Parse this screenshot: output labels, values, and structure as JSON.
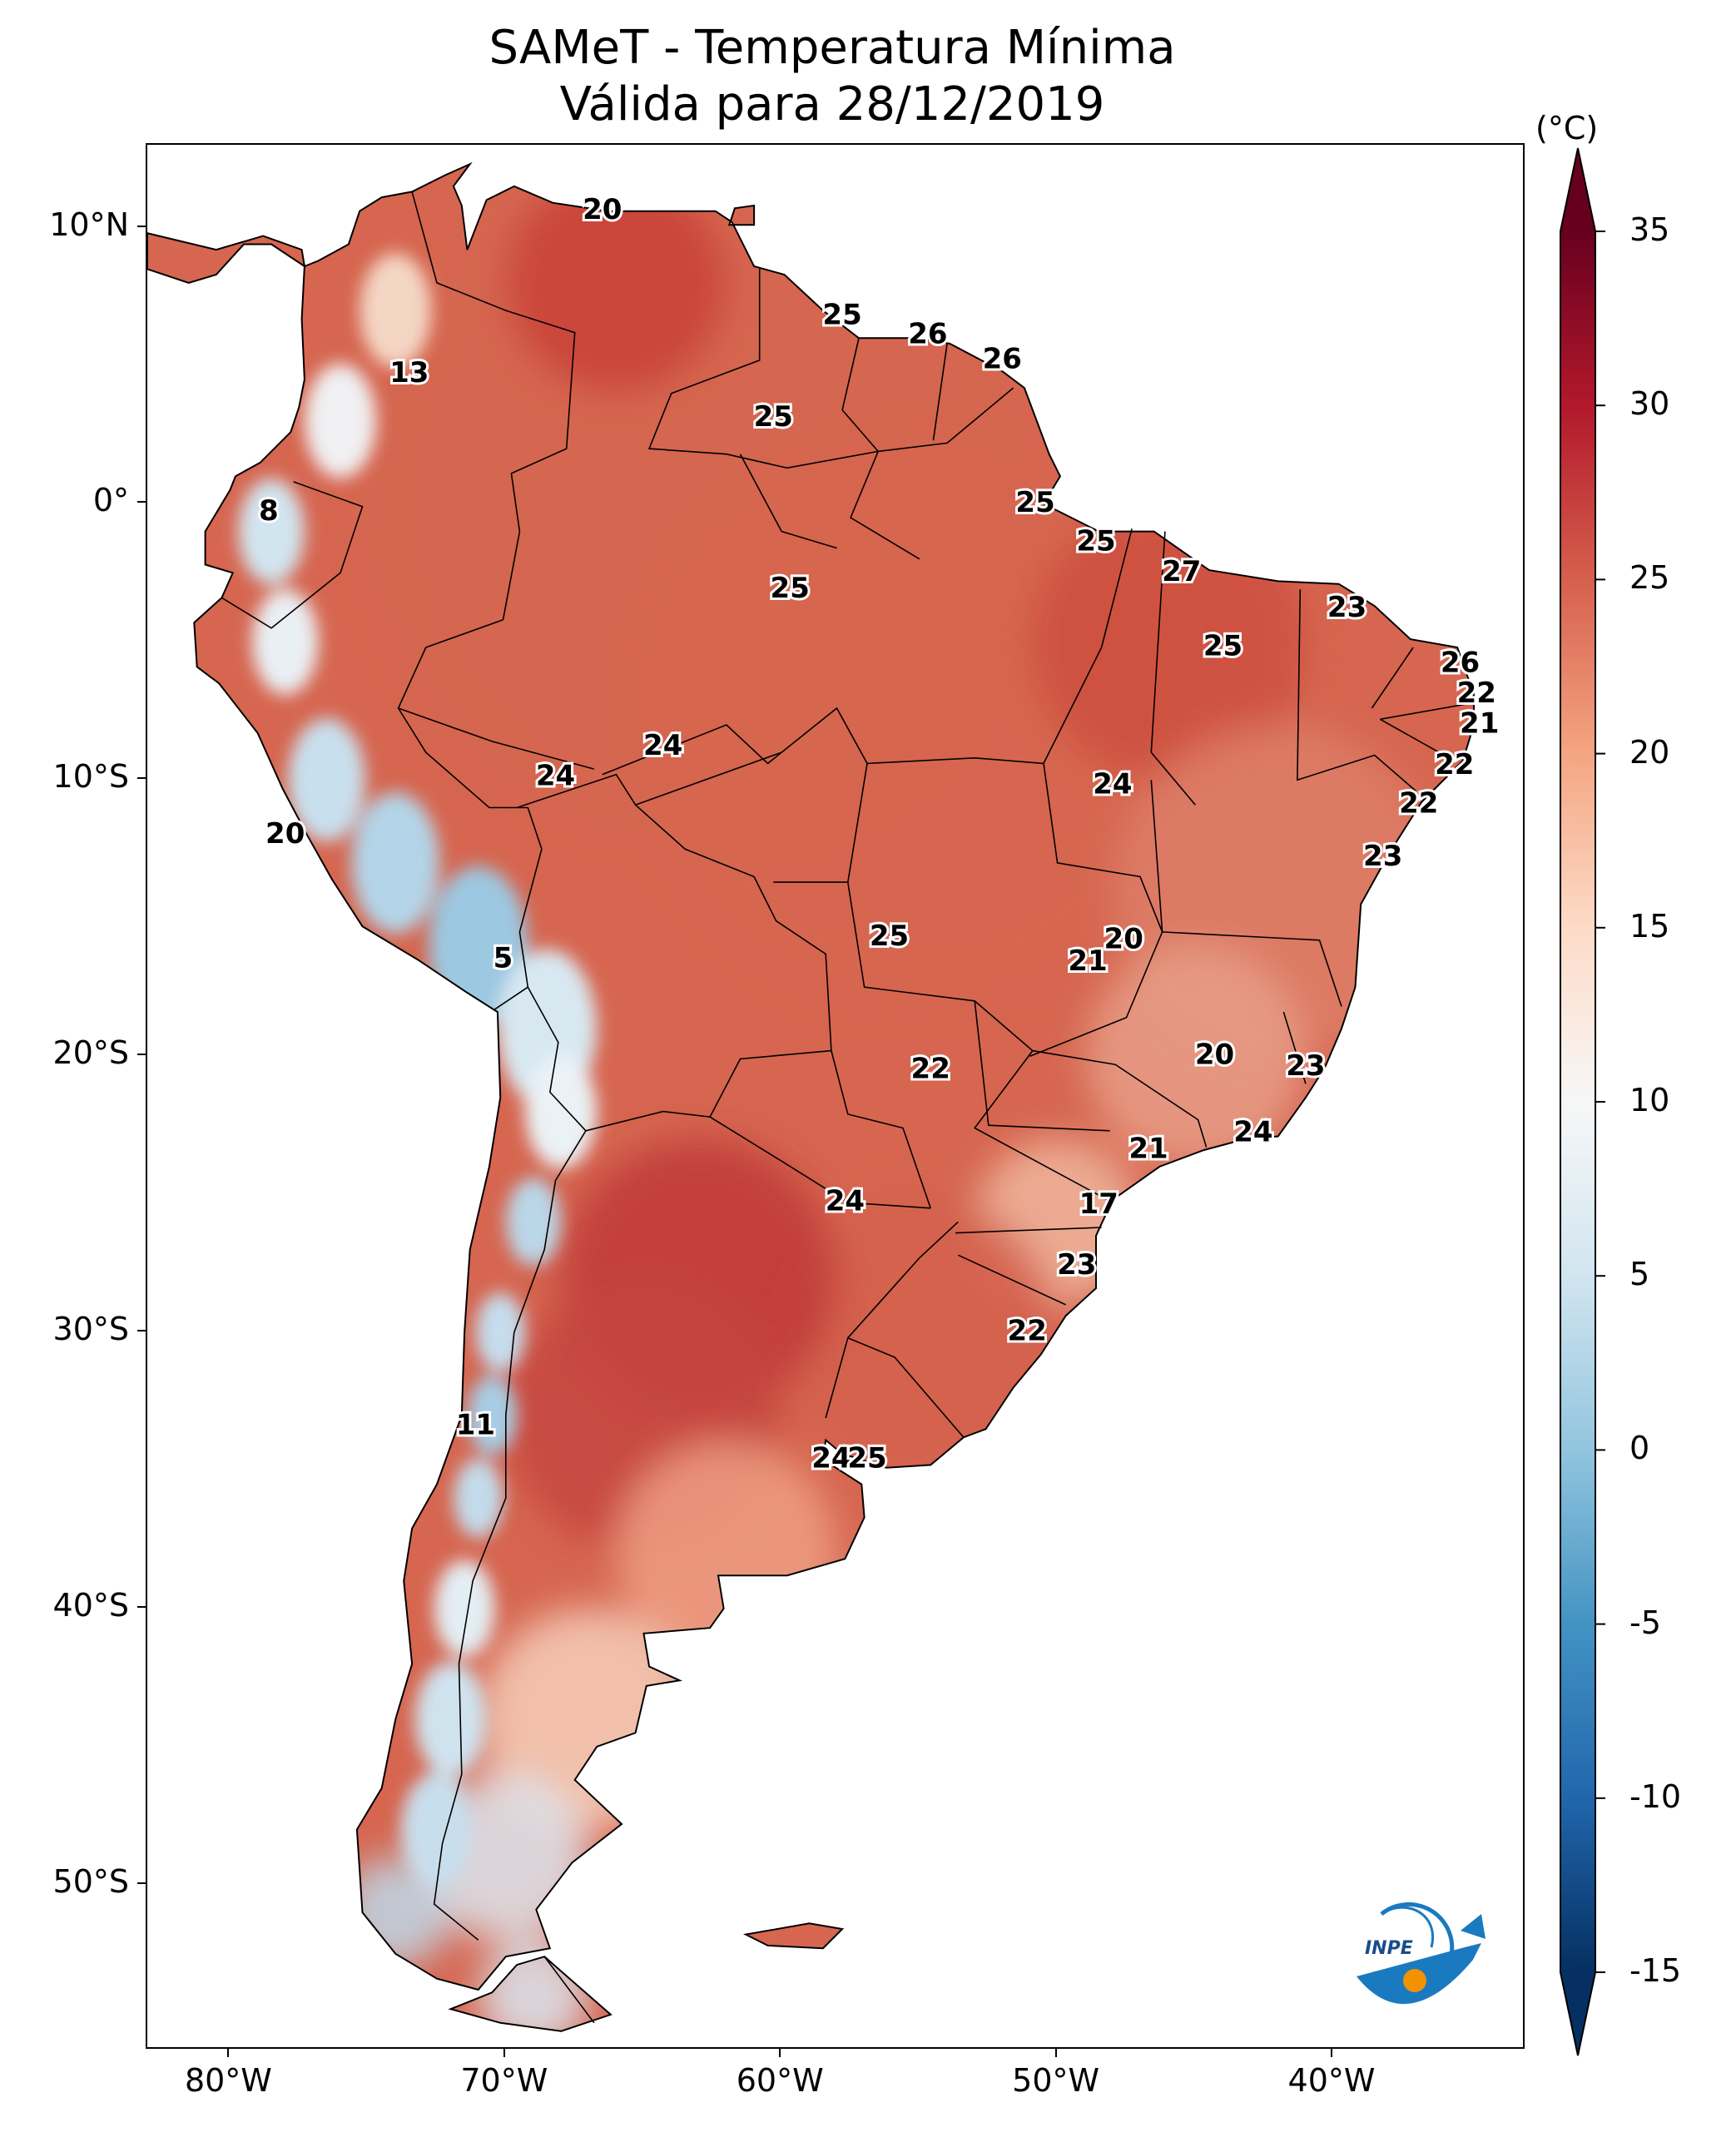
{
  "title": {
    "line1": "SAMeT - Temperatura Mínima",
    "line2": "Válida para 28/12/2019"
  },
  "map": {
    "extent": {
      "lon_min": -83,
      "lon_max": -33,
      "lat_min": -56,
      "lat_max": 13
    },
    "latitude_labels": [
      {
        "lat": 10,
        "text": "10°N"
      },
      {
        "lat": 0,
        "text": "0°"
      },
      {
        "lat": -10,
        "text": "10°S"
      },
      {
        "lat": -20,
        "text": "20°S"
      },
      {
        "lat": -30,
        "text": "30°S"
      },
      {
        "lat": -40,
        "text": "40°S"
      },
      {
        "lat": -50,
        "text": "50°S"
      }
    ],
    "longitude_labels": [
      {
        "lon": -80,
        "text": "80°W"
      },
      {
        "lon": -70,
        "text": "70°W"
      },
      {
        "lon": -60,
        "text": "60°W"
      },
      {
        "lon": -50,
        "text": "50°W"
      },
      {
        "lon": -40,
        "text": "40°W"
      }
    ],
    "value_labels": [
      {
        "lon": -66.5,
        "lat": 10.6,
        "text": "20"
      },
      {
        "lon": -57.8,
        "lat": 6.8,
        "text": "25"
      },
      {
        "lon": -54.7,
        "lat": 6.1,
        "text": "26"
      },
      {
        "lon": -52.0,
        "lat": 5.2,
        "text": "26"
      },
      {
        "lon": -73.5,
        "lat": 4.7,
        "text": "13"
      },
      {
        "lon": -60.3,
        "lat": 3.1,
        "text": "25"
      },
      {
        "lon": -78.6,
        "lat": -0.3,
        "text": "8"
      },
      {
        "lon": -50.8,
        "lat": 0.0,
        "text": "25"
      },
      {
        "lon": -48.6,
        "lat": -1.4,
        "text": "25"
      },
      {
        "lon": -59.7,
        "lat": -3.1,
        "text": "25"
      },
      {
        "lon": -45.5,
        "lat": -2.5,
        "text": "27"
      },
      {
        "lon": -39.5,
        "lat": -3.8,
        "text": "23"
      },
      {
        "lon": -44.0,
        "lat": -5.2,
        "text": "25"
      },
      {
        "lon": -35.4,
        "lat": -5.8,
        "text": "26"
      },
      {
        "lon": -34.8,
        "lat": -6.9,
        "text": "22"
      },
      {
        "lon": -34.7,
        "lat": -8.0,
        "text": "21"
      },
      {
        "lon": -35.6,
        "lat": -9.5,
        "text": "22"
      },
      {
        "lon": -36.9,
        "lat": -10.9,
        "text": "22"
      },
      {
        "lon": -64.3,
        "lat": -8.8,
        "text": "24"
      },
      {
        "lon": -68.2,
        "lat": -9.9,
        "text": "24"
      },
      {
        "lon": -48.0,
        "lat": -10.2,
        "text": "24"
      },
      {
        "lon": -78.0,
        "lat": -12.0,
        "text": "20"
      },
      {
        "lon": -38.2,
        "lat": -12.8,
        "text": "23"
      },
      {
        "lon": -56.1,
        "lat": -15.7,
        "text": "25"
      },
      {
        "lon": -70.1,
        "lat": -16.5,
        "text": "5"
      },
      {
        "lon": -47.6,
        "lat": -15.8,
        "text": "20"
      },
      {
        "lon": -48.9,
        "lat": -16.6,
        "text": "21"
      },
      {
        "lon": -54.6,
        "lat": -20.5,
        "text": "22"
      },
      {
        "lon": -44.3,
        "lat": -20.0,
        "text": "20"
      },
      {
        "lon": -41.0,
        "lat": -20.4,
        "text": "23"
      },
      {
        "lon": -42.9,
        "lat": -22.8,
        "text": "24"
      },
      {
        "lon": -46.7,
        "lat": -23.4,
        "text": "21"
      },
      {
        "lon": -57.7,
        "lat": -25.3,
        "text": "24"
      },
      {
        "lon": -48.5,
        "lat": -25.4,
        "text": "17"
      },
      {
        "lon": -49.3,
        "lat": -27.6,
        "text": "23"
      },
      {
        "lon": -51.1,
        "lat": -30.0,
        "text": "22"
      },
      {
        "lon": -71.1,
        "lat": -33.4,
        "text": "11"
      },
      {
        "lon": -58.2,
        "lat": -34.6,
        "text": "24"
      },
      {
        "lon": -56.9,
        "lat": -34.6,
        "text": "25"
      }
    ]
  },
  "colorbar": {
    "unit": "(°C)",
    "min": -17.5,
    "max": 37.5,
    "colors": [
      "#053061",
      "#2166ac",
      "#4393c3",
      "#92c5de",
      "#d1e5f0",
      "#f7f7f7",
      "#fddbc7",
      "#f4a582",
      "#d6604d",
      "#b2182b",
      "#67001f"
    ],
    "ticks": [
      {
        "value": 35,
        "text": "35"
      },
      {
        "value": 30,
        "text": "30"
      },
      {
        "value": 25,
        "text": "25"
      },
      {
        "value": 20,
        "text": "20"
      },
      {
        "value": 15,
        "text": "15"
      },
      {
        "value": 10,
        "text": "10"
      },
      {
        "value": 5,
        "text": "5"
      },
      {
        "value": 0,
        "text": "0"
      },
      {
        "value": -5,
        "text": "-5"
      },
      {
        "value": -10,
        "text": "-10"
      },
      {
        "value": -15,
        "text": "-15"
      }
    ]
  },
  "logo": {
    "text": "INPE"
  }
}
